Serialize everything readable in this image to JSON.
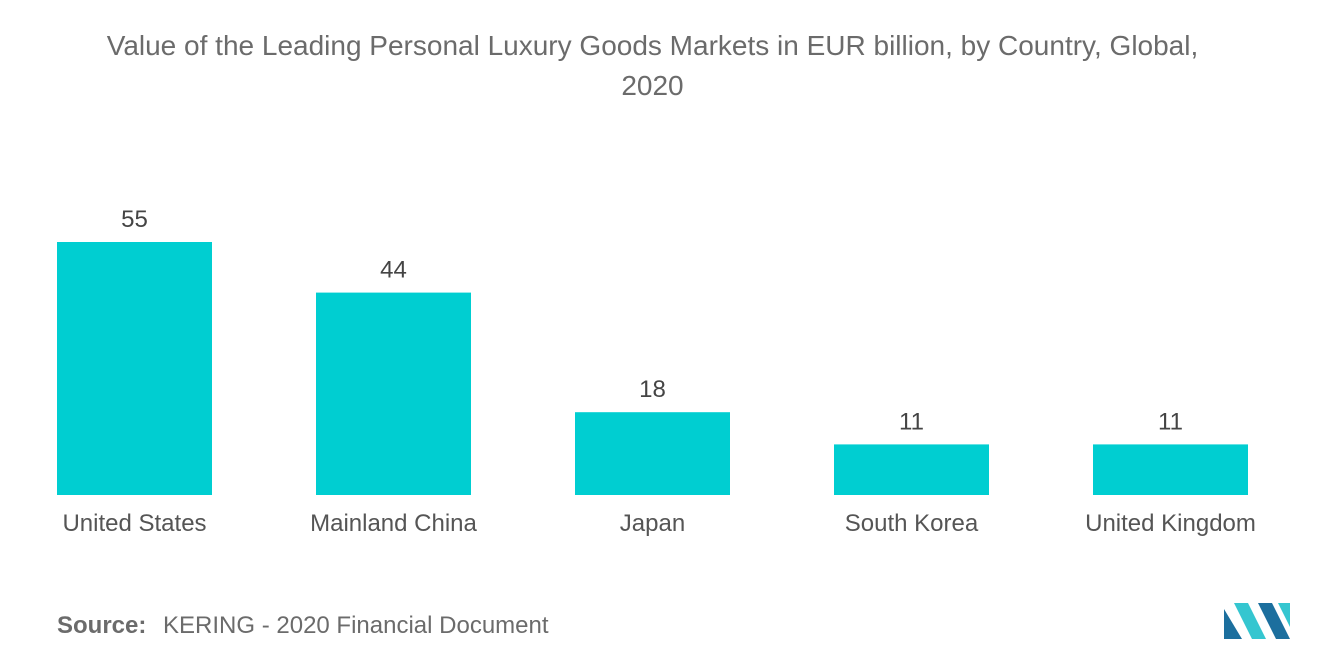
{
  "chart_data": {
    "type": "bar",
    "title_lines": [
      "Value of the Leading Personal Luxury Goods Markets in EUR billion, by Country, Global,",
      "2020"
    ],
    "categories": [
      "United States",
      "Mainland China",
      "Japan",
      "South Korea",
      "United Kingdom"
    ],
    "values": [
      55,
      44,
      18,
      11,
      11
    ],
    "data_labels": [
      "55",
      "44",
      "18",
      "11",
      "11"
    ],
    "bar_color": "#00CED1",
    "grid": false,
    "legend": "none"
  },
  "source": {
    "label": "Source:",
    "text": "KERING - 2020 Financial Document"
  },
  "colors": {
    "logo_dark": "#1c6f9e",
    "logo_light": "#35c6d0"
  }
}
